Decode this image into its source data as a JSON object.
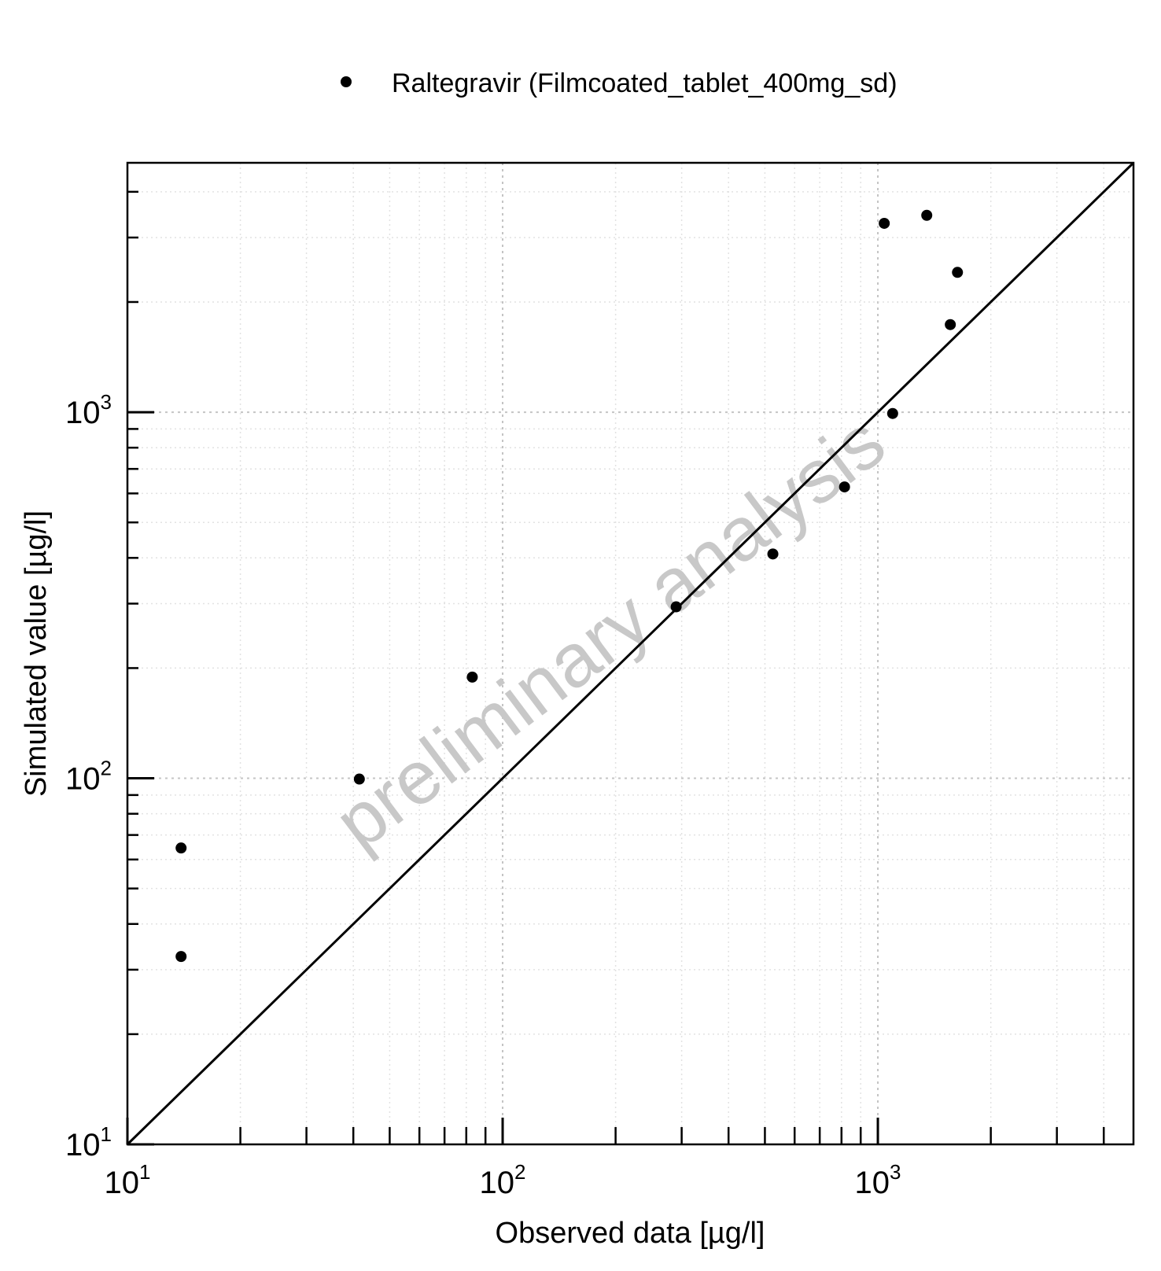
{
  "chart_data": {
    "type": "scatter",
    "xlabel": "Observed data [µg/l]",
    "ylabel": "Simulated value [µg/l]",
    "x_scale": "log",
    "y_scale": "log",
    "xlim": [
      10,
      4800
    ],
    "ylim": [
      10,
      4800
    ],
    "x_ticks": [
      {
        "base": "10",
        "exp": "1",
        "value": 10
      },
      {
        "base": "10",
        "exp": "2",
        "value": 100
      },
      {
        "base": "10",
        "exp": "3",
        "value": 1000
      }
    ],
    "y_ticks": [
      {
        "base": "10",
        "exp": "1",
        "value": 10
      },
      {
        "base": "10",
        "exp": "2",
        "value": 100
      },
      {
        "base": "10",
        "exp": "3",
        "value": 1000
      }
    ],
    "grid": true,
    "identity_line": true,
    "legend_position": "top-center",
    "series": [
      {
        "name": "Raltegravir (Filmcoated_tablet_400mg_sd)",
        "color": "#000000",
        "marker": "circle",
        "points": [
          {
            "x": 13.9,
            "y": 64.5
          },
          {
            "x": 13.9,
            "y": 32.6
          },
          {
            "x": 41.5,
            "y": 99.5
          },
          {
            "x": 83,
            "y": 189
          },
          {
            "x": 290,
            "y": 294
          },
          {
            "x": 525,
            "y": 410
          },
          {
            "x": 815,
            "y": 625
          },
          {
            "x": 1040,
            "y": 3280
          },
          {
            "x": 1095,
            "y": 992
          },
          {
            "x": 1350,
            "y": 3450
          },
          {
            "x": 1560,
            "y": 1735
          },
          {
            "x": 1630,
            "y": 2410
          }
        ]
      }
    ],
    "watermark": "preliminary analysis"
  }
}
